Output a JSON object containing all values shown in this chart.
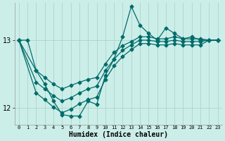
{
  "xlabel": "Humidex (Indice chaleur)",
  "ylabel": "",
  "bg_color": "#cceee8",
  "grid_color": "#aad4cc",
  "line_color": "#006b6b",
  "ylim": [
    11.75,
    13.55
  ],
  "xlim": [
    -0.5,
    23.5
  ],
  "yticks": [
    12,
    13
  ],
  "xticks": [
    0,
    1,
    2,
    3,
    4,
    5,
    6,
    7,
    8,
    9,
    10,
    11,
    12,
    13,
    14,
    15,
    16,
    17,
    18,
    19,
    20,
    21,
    22,
    23
  ],
  "series": [
    {
      "x": [
        0,
        1,
        2,
        3,
        4,
        5,
        6,
        7,
        8,
        9,
        10,
        11,
        12,
        13,
        14,
        15,
        16,
        17,
        18,
        19,
        20,
        21,
        22,
        23
      ],
      "y": [
        13.0,
        13.0,
        12.55,
        12.35,
        12.1,
        11.9,
        11.88,
        11.88,
        12.1,
        12.05,
        12.48,
        12.72,
        13.05,
        13.5,
        13.22,
        13.1,
        13.0,
        13.18,
        13.1,
        13.02,
        13.05,
        13.0,
        13.0,
        13.0
      ]
    },
    {
      "x": [
        0,
        2,
        3,
        4,
        5,
        6,
        7,
        8,
        9,
        10,
        11,
        12,
        13,
        14,
        15,
        16,
        17,
        18,
        19,
        20,
        21,
        22,
        23
      ],
      "y": [
        13.0,
        12.55,
        12.45,
        12.35,
        12.28,
        12.33,
        12.38,
        12.42,
        12.45,
        12.65,
        12.82,
        12.92,
        12.98,
        13.05,
        13.05,
        13.02,
        13.02,
        13.05,
        13.02,
        13.02,
        13.02,
        13.0,
        13.0
      ]
    },
    {
      "x": [
        0,
        2,
        3,
        4,
        5,
        6,
        7,
        8,
        9,
        10,
        11,
        12,
        13,
        14,
        15,
        16,
        17,
        18,
        19,
        20,
        21,
        22,
        23
      ],
      "y": [
        13.0,
        12.38,
        12.28,
        12.18,
        12.1,
        12.15,
        12.22,
        12.28,
        12.32,
        12.55,
        12.72,
        12.85,
        12.93,
        13.0,
        13.0,
        12.98,
        12.98,
        13.0,
        12.98,
        12.98,
        12.98,
        13.0,
        13.0
      ]
    },
    {
      "x": [
        0,
        2,
        3,
        4,
        5,
        6,
        7,
        8,
        9,
        10,
        11,
        12,
        13,
        14,
        15,
        16,
        17,
        18,
        19,
        20,
        21,
        22,
        23
      ],
      "y": [
        13.0,
        12.22,
        12.12,
        12.01,
        11.93,
        11.98,
        12.06,
        12.12,
        12.16,
        12.42,
        12.62,
        12.76,
        12.86,
        12.95,
        12.95,
        12.93,
        12.93,
        12.95,
        12.93,
        12.93,
        12.93,
        13.0,
        13.0
      ]
    }
  ],
  "marker_size": 2.5,
  "line_width": 0.9
}
